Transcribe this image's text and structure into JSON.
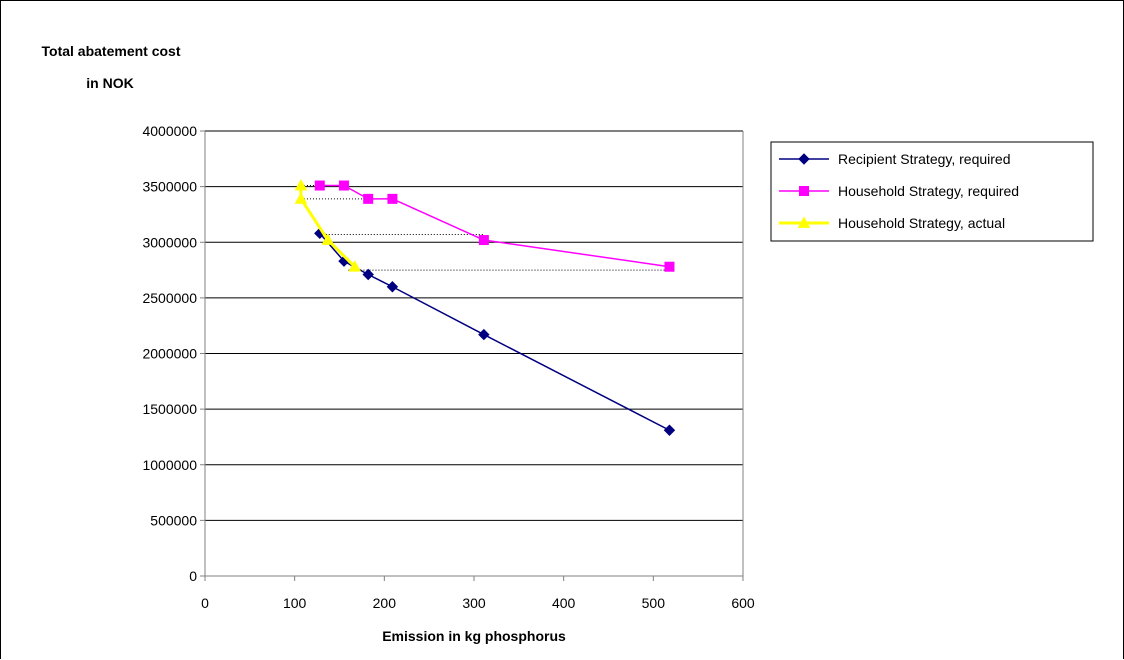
{
  "chart_data": {
    "type": "line",
    "title": "",
    "ylabel_lines": [
      "Total abatement cost",
      "in NOK"
    ],
    "xlabel": "Emission in kg phosphorus",
    "xlim": [
      0,
      600
    ],
    "ylim": [
      0,
      4000000
    ],
    "x_ticks": [
      0,
      100,
      200,
      300,
      400,
      500,
      600
    ],
    "x_tick_labels": [
      "0",
      "100",
      "200",
      "300",
      "400",
      "500",
      "600"
    ],
    "y_ticks": [
      0,
      500000,
      1000000,
      1500000,
      2000000,
      2500000,
      3000000,
      3500000,
      4000000
    ],
    "y_tick_labels": [
      "0",
      "500000",
      "1000000",
      "1500000",
      "2000000",
      "2500000",
      "3000000",
      "3500000",
      "4000000"
    ],
    "grid": "horizontal",
    "legend_position": "right",
    "series": [
      {
        "name": "Recipient Strategy, required",
        "color": "#000080",
        "marker": "diamond",
        "line_width": 1.5,
        "points": [
          [
            128,
            3080000
          ],
          [
            155,
            2830000
          ],
          [
            182,
            2710000
          ],
          [
            209,
            2600000
          ],
          [
            311,
            2170000
          ],
          [
            518,
            1310000
          ]
        ]
      },
      {
        "name": "Household Strategy, required",
        "color": "#ff00ff",
        "marker": "square",
        "line_width": 1.5,
        "points": [
          [
            128,
            3510000
          ],
          [
            155,
            3510000
          ],
          [
            182,
            3390000
          ],
          [
            209,
            3390000
          ],
          [
            311,
            3020000
          ],
          [
            518,
            2780000
          ]
        ]
      },
      {
        "name": "Household Strategy, actual",
        "color": "#ffff00",
        "marker": "triangle",
        "line_width": 3,
        "points": [
          [
            107,
            3510000
          ],
          [
            107,
            3390000
          ],
          [
            137,
            3020000
          ],
          [
            167,
            2780000
          ]
        ]
      }
    ],
    "connectors": [
      {
        "x1": 107,
        "x2": 155,
        "y": 3510000
      },
      {
        "x1": 107,
        "x2": 209,
        "y": 3390000
      },
      {
        "x1": 128,
        "x2": 311,
        "y": 3070000
      },
      {
        "x1": 160,
        "x2": 518,
        "y": 2750000
      }
    ]
  }
}
